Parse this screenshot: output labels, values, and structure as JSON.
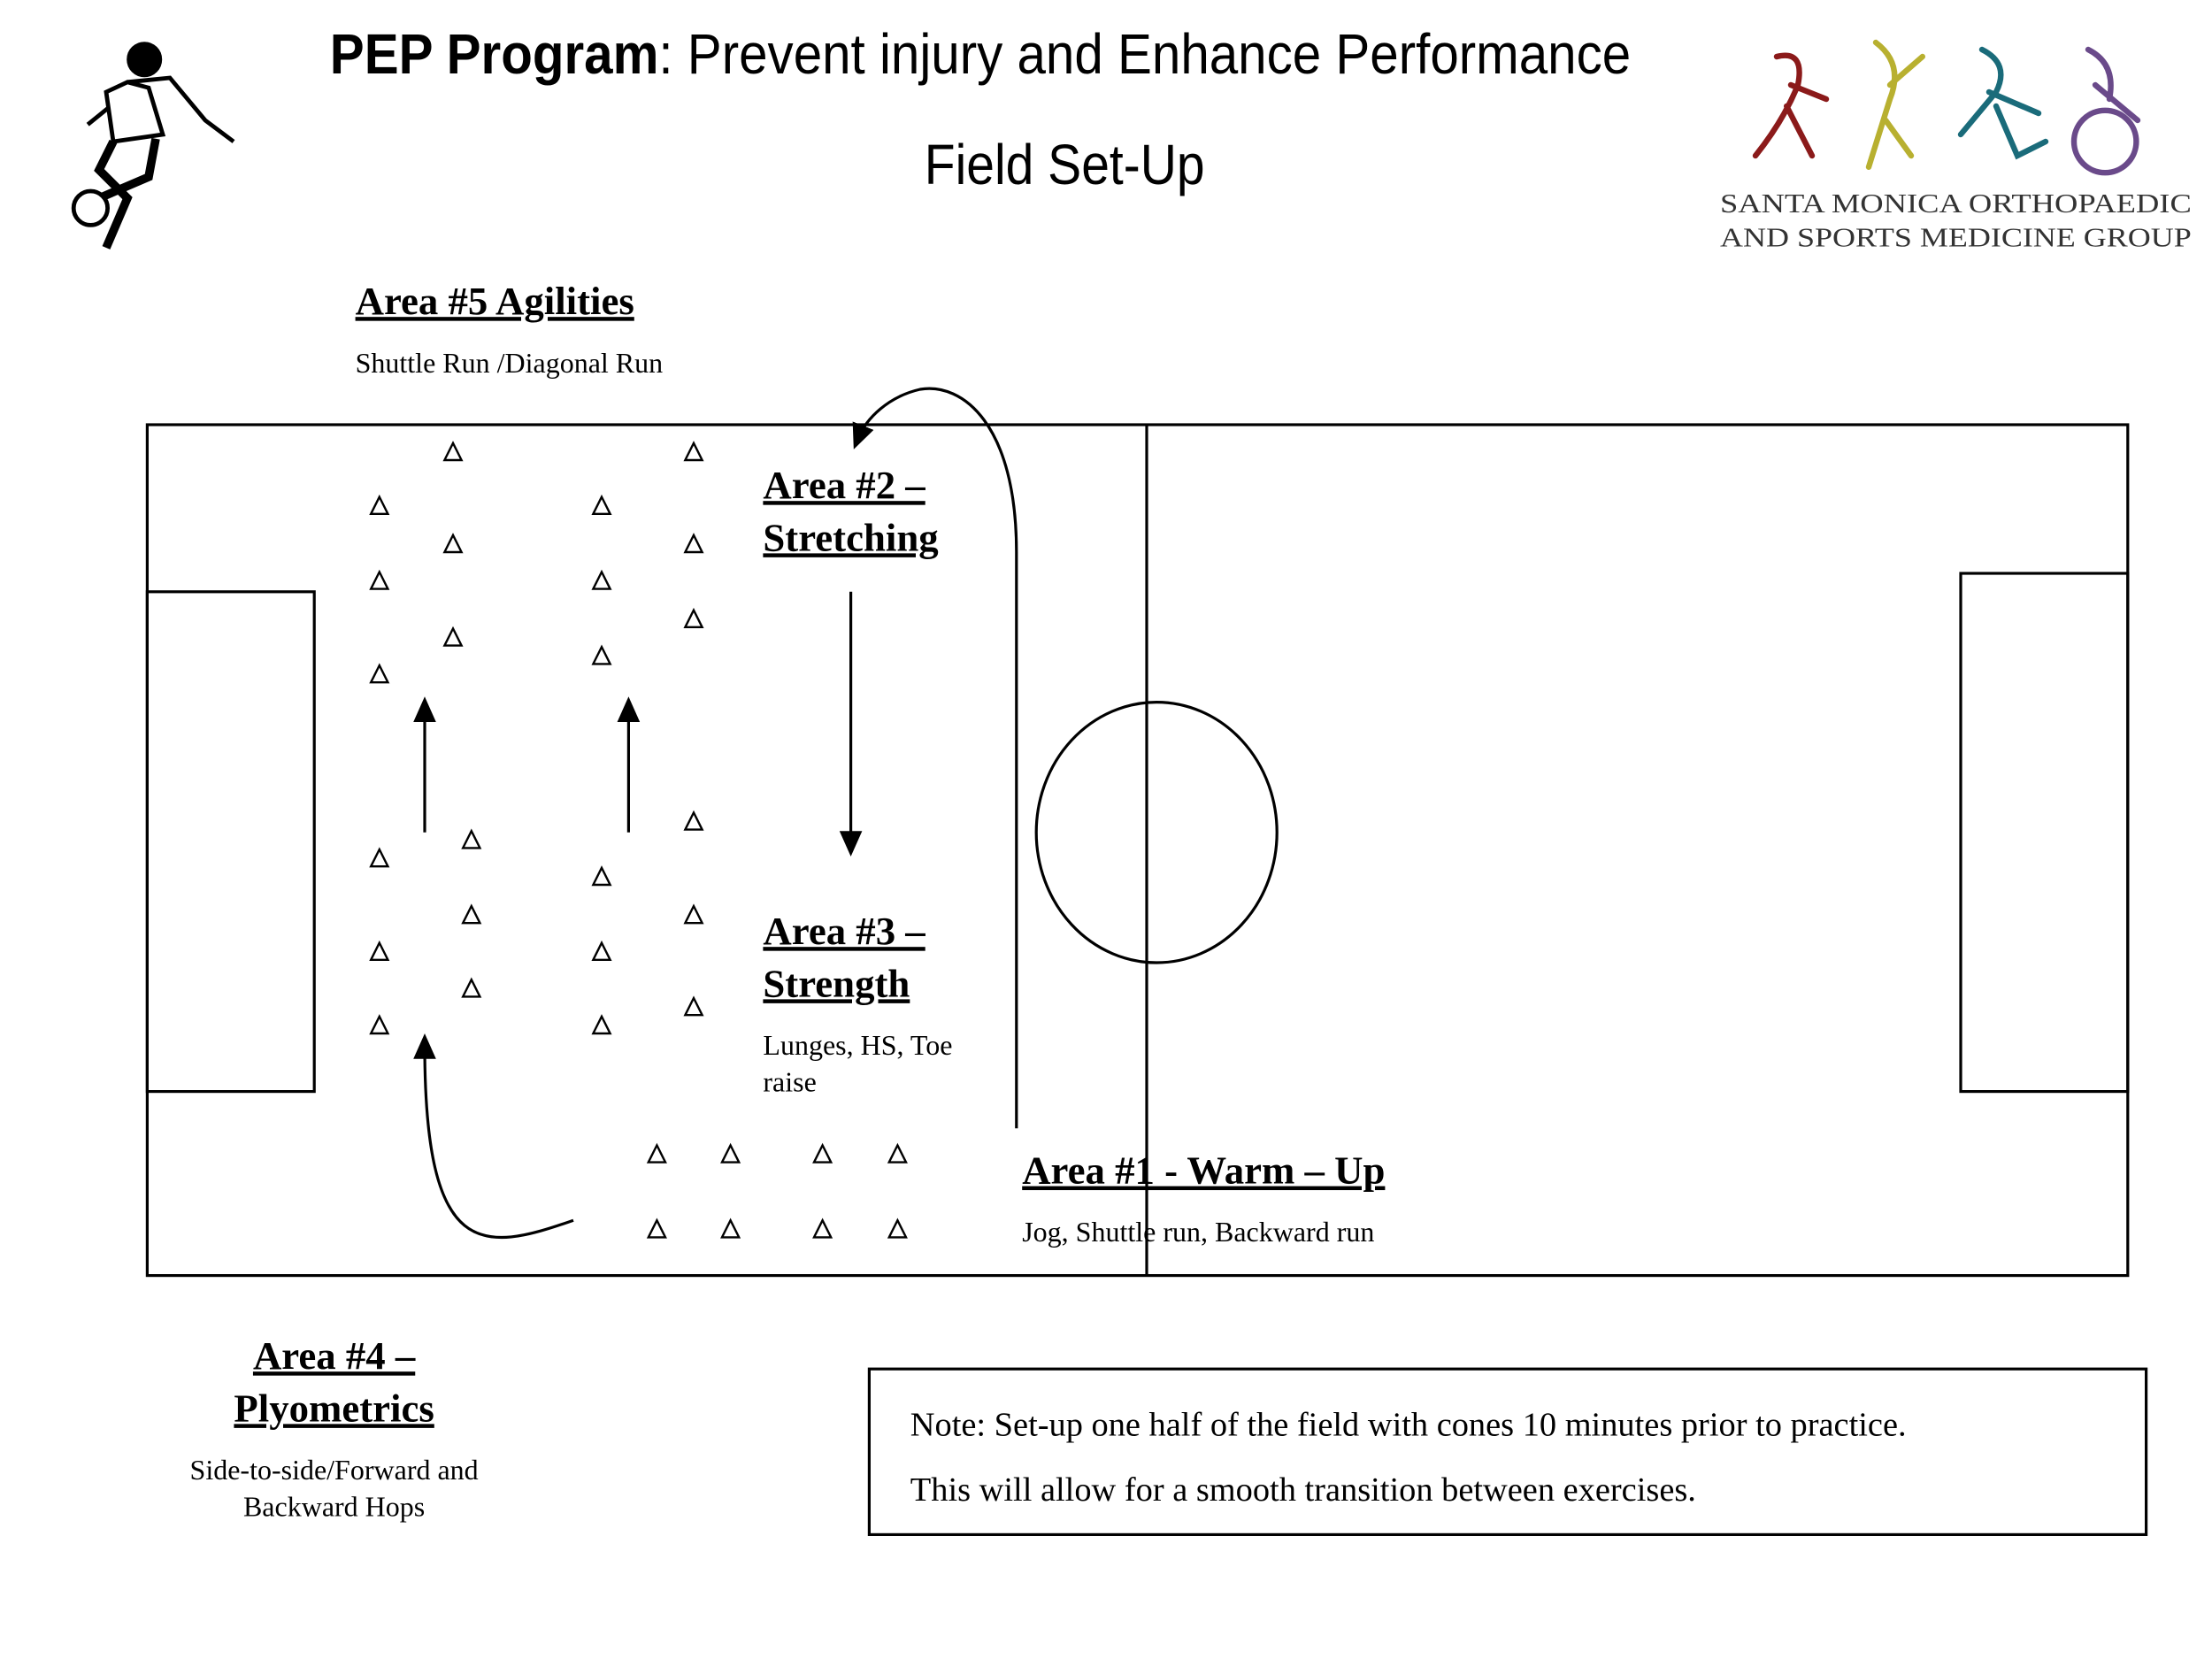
{
  "header": {
    "title_bold": "PEP Program",
    "title_rest": ":  Prevent injury and  Enhance Performance",
    "subtitle": "Field Set-Up"
  },
  "logo": {
    "line1": "SANTA MONICA ORTHOPAEDIC",
    "line2": "AND SPORTS MEDICINE GROUP"
  },
  "areas": [
    {
      "title_lines": [
        "Area #5 Agilities"
      ],
      "description_lines": [
        "Shuttle Run /Diagonal Run"
      ]
    },
    {
      "title_lines": [
        "Area #2 –",
        "Stretching"
      ],
      "description_lines": []
    },
    {
      "title_lines": [
        "Area #3 –",
        "Strength"
      ],
      "description_lines": [
        "Lunges, HS, Toe",
        "raise"
      ]
    },
    {
      "title_lines": [
        "Area #1 - Warm – Up"
      ],
      "description_lines": [
        "Jog, Shuttle run, Backward run"
      ]
    },
    {
      "title_lines": [
        "Area #4 –",
        "Plyometrics"
      ],
      "description_lines": [
        "Side-to-side/Forward and",
        "Backward  Hops"
      ]
    }
  ],
  "note": {
    "lines": [
      "Note: Set-up one half of the field with cones 10 minutes prior to practice.",
      "This will allow for a smooth transition between exercises."
    ]
  }
}
